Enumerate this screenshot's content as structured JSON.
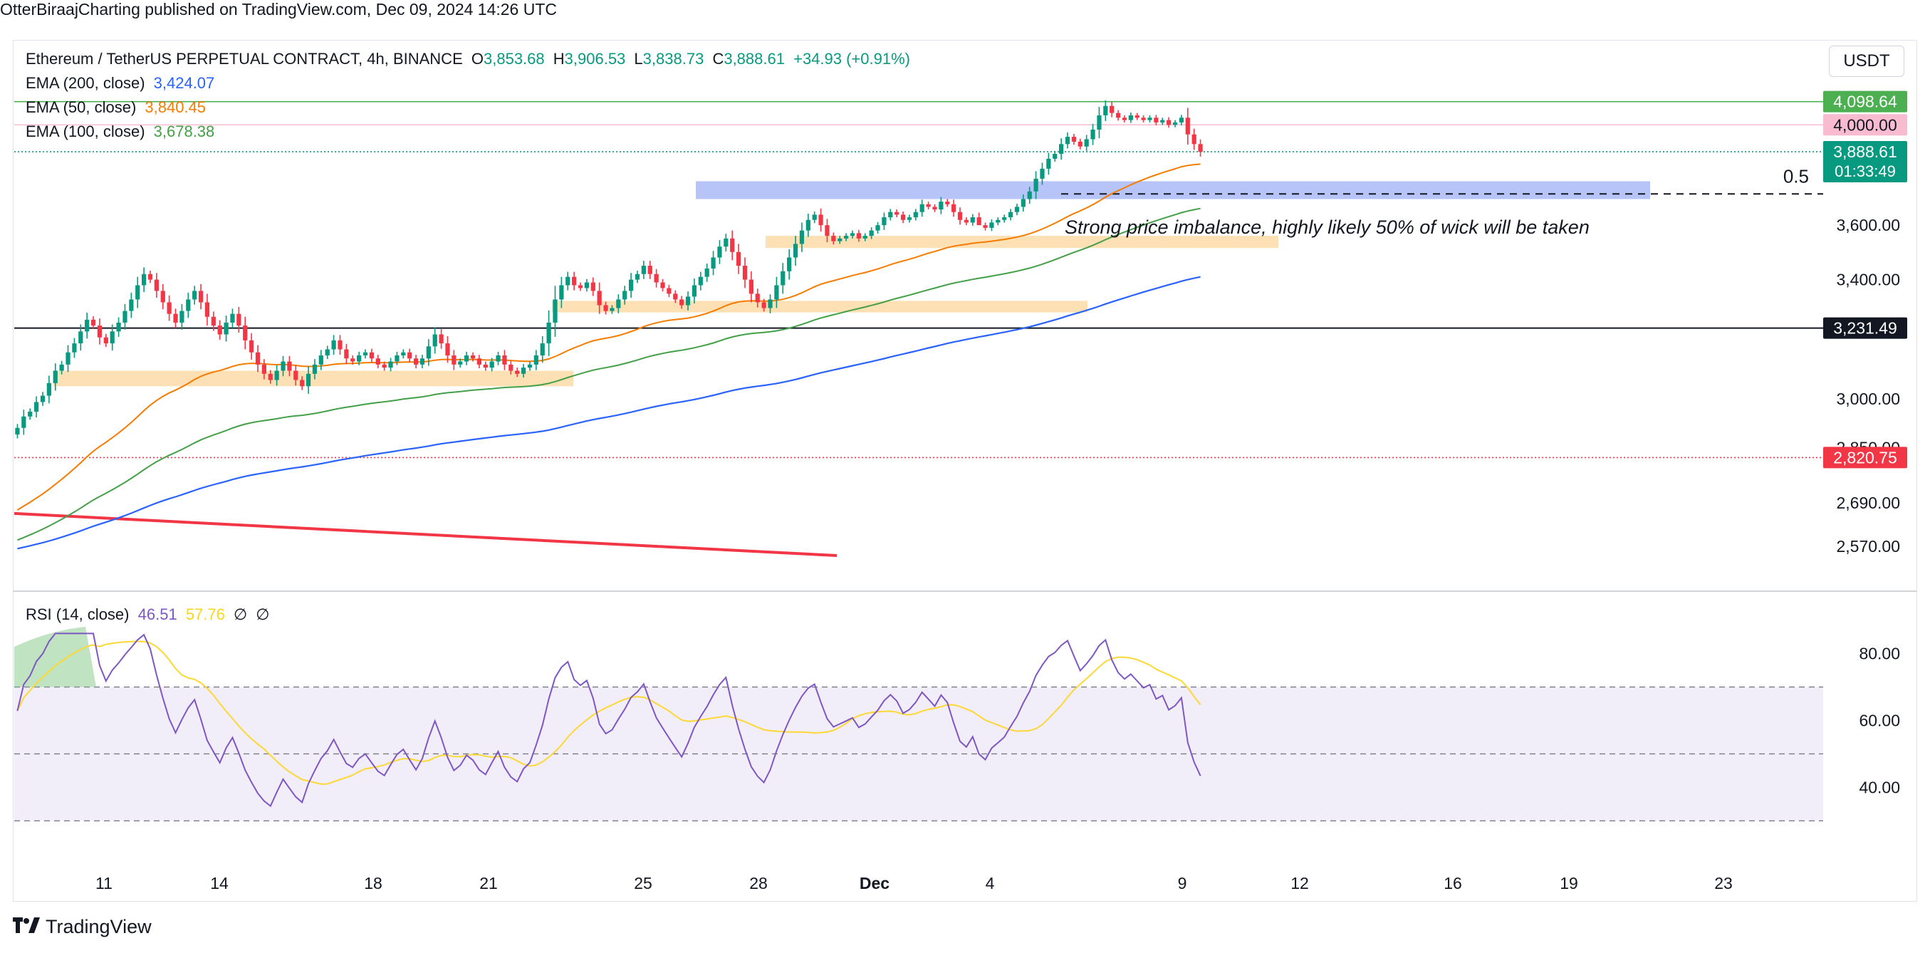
{
  "publisher": "OtterBiraajCharting published on TradingView.com, Dec 09, 2024 14:26 UTC",
  "logo_text": "TradingView",
  "currency_button": "USDT",
  "legend": {
    "symbol": "Ethereum / TetherUS PERPETUAL CONTRACT, 4h, BINANCE",
    "o_label": "O",
    "o_value": "3,853.68",
    "h_label": "H",
    "h_value": "3,906.53",
    "l_label": "L",
    "l_value": "3,838.73",
    "c_label": "C",
    "c_value": "3,888.61",
    "change": "+34.93 (+0.91%)",
    "ema200_label": "EMA (200, close)",
    "ema200_value": "3,424.07",
    "ema50_label": "EMA (50, close)",
    "ema50_value": "3,840.45",
    "ema100_label": "EMA (100, close)",
    "ema100_value": "3,678.38",
    "rsi_label": "RSI (14, close)",
    "rsi_value": "46.51",
    "rsi_ma_value": "57.76",
    "rsi_extra1": "∅",
    "rsi_extra2": "∅"
  },
  "colors": {
    "up": "#089981",
    "down": "#f23645",
    "ema200": "#2962ff",
    "ema50": "#f57c00",
    "ema100": "#43a047",
    "rsi": "#7e57c2",
    "rsi_ma": "#fdd835",
    "zone_blue": "#b3c1f7",
    "zone_orange": "#fde0b4",
    "resistance": "#4caf50",
    "trend": "#f23645"
  },
  "chart_data": {
    "type": "candlestick",
    "title": "Ethereum / TetherUS PERPETUAL CONTRACT, 4h, BINANCE",
    "x_ticks": [
      "11",
      "14",
      "18",
      "21",
      "25",
      "28",
      "Dec",
      "4",
      "9",
      "12",
      "16",
      "19",
      "23"
    ],
    "y_ticks": [
      "3,600.00",
      "3,400.00",
      "3,000.00",
      "2,850.00",
      "2,690.00",
      "2,570.00"
    ],
    "y_scale": "log",
    "ylim": [
      2470,
      4200
    ],
    "price_labels": [
      {
        "text": "4,098.64",
        "value": 4098.64,
        "color": "#4caf50"
      },
      {
        "text": "4,000.00",
        "value": 4000,
        "color": "#f8bbd0",
        "fg": "#131722"
      },
      {
        "text": "3,888.61",
        "value": 3888.61,
        "color": "#089981",
        "sub": "01:33:49"
      },
      {
        "text": "3,231.49",
        "value": 3231.49,
        "color": "#131722"
      },
      {
        "text": "2,820.75",
        "value": 2820.75,
        "color": "#f23645"
      }
    ],
    "horizontal_lines": [
      {
        "value": 4098.64,
        "style": "solid",
        "color": "#4caf50"
      },
      {
        "value": 4000,
        "style": "solid",
        "color": "#f8bbd0"
      },
      {
        "value": 3888.61,
        "style": "dotted",
        "color": "#089981"
      },
      {
        "value": 3231.49,
        "style": "solid",
        "color": "#131722"
      },
      {
        "value": 2820.75,
        "style": "dotted",
        "color": "#f23645"
      }
    ],
    "fib_level": {
      "label": "0.5",
      "value": 3720
    },
    "annotation": "Strong price imbalance, highly likely 50% of wick will be taken",
    "close": [
      2910,
      2945,
      2960,
      2990,
      3010,
      3050,
      3090,
      3110,
      3150,
      3180,
      3220,
      3260,
      3240,
      3200,
      3180,
      3220,
      3250,
      3290,
      3330,
      3380,
      3420,
      3400,
      3360,
      3320,
      3280,
      3250,
      3290,
      3330,
      3360,
      3320,
      3270,
      3240,
      3210,
      3250,
      3280,
      3240,
      3190,
      3150,
      3110,
      3080,
      3060,
      3090,
      3120,
      3090,
      3060,
      3040,
      3080,
      3110,
      3140,
      3160,
      3190,
      3160,
      3130,
      3120,
      3140,
      3150,
      3130,
      3110,
      3100,
      3120,
      3140,
      3150,
      3130,
      3110,
      3130,
      3170,
      3210,
      3180,
      3140,
      3110,
      3120,
      3140,
      3130,
      3110,
      3100,
      3120,
      3140,
      3110,
      3090,
      3080,
      3100,
      3110,
      3140,
      3180,
      3250,
      3330,
      3380,
      3410,
      3380,
      3370,
      3390,
      3360,
      3310,
      3290,
      3300,
      3330,
      3360,
      3400,
      3420,
      3450,
      3420,
      3390,
      3370,
      3350,
      3330,
      3310,
      3340,
      3380,
      3410,
      3440,
      3480,
      3520,
      3550,
      3500,
      3450,
      3400,
      3350,
      3320,
      3300,
      3330,
      3380,
      3430,
      3480,
      3530,
      3580,
      3620,
      3640,
      3600,
      3560,
      3540,
      3550,
      3560,
      3570,
      3550,
      3560,
      3580,
      3600,
      3630,
      3650,
      3640,
      3620,
      3630,
      3650,
      3680,
      3670,
      3660,
      3690,
      3680,
      3650,
      3620,
      3610,
      3630,
      3600,
      3590,
      3610,
      3620,
      3630,
      3650,
      3670,
      3700,
      3730,
      3780,
      3820,
      3860,
      3880,
      3920,
      3950,
      3930,
      3910,
      3940,
      3980,
      4040,
      4080,
      4050,
      4030,
      4020,
      4040,
      4030,
      4020,
      4030,
      4010,
      4020,
      4000,
      4010,
      4030,
      3960,
      3920,
      3888
    ]
  }
}
